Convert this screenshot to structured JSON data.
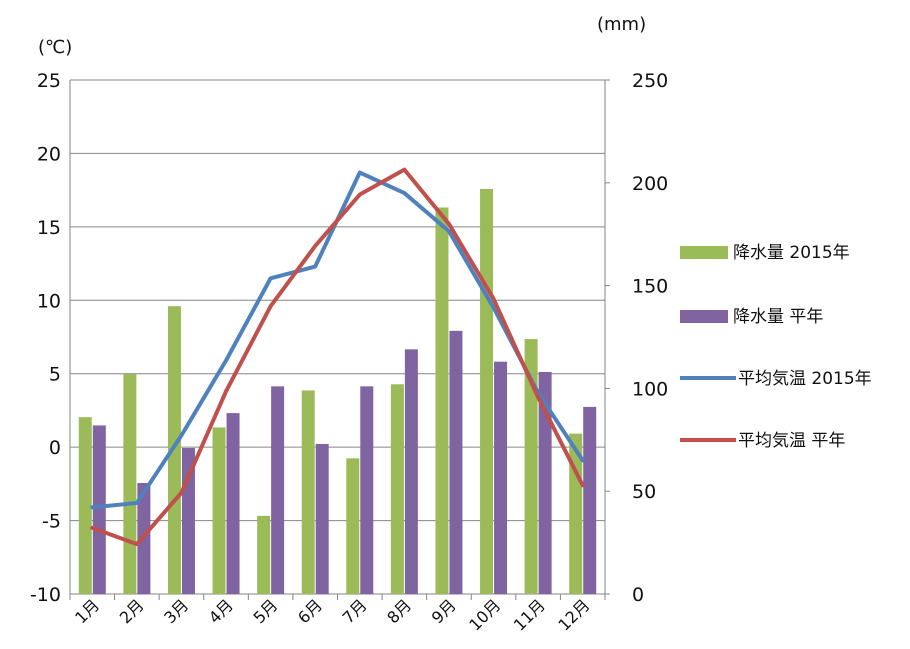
{
  "chart_data": {
    "type": "bar+line",
    "categories": [
      "1月",
      "2月",
      "3月",
      "4月",
      "5月",
      "6月",
      "7月",
      "8月",
      "9月",
      "10月",
      "11月",
      "12月"
    ],
    "left_axis": {
      "unit": "(℃)",
      "ylim": [
        -10,
        25
      ],
      "ticks": [
        -10,
        -5,
        0,
        5,
        10,
        15,
        20,
        25
      ]
    },
    "right_axis": {
      "unit": "(mm)",
      "ylim": [
        0,
        250
      ],
      "ticks": [
        0,
        50,
        100,
        150,
        200,
        250
      ]
    },
    "bar_series": [
      {
        "name": "降水量 2015年",
        "color": "#9BBB59",
        "axis": "right",
        "values": [
          86,
          107,
          140,
          81,
          38,
          99,
          66,
          102,
          188,
          197,
          124,
          78
        ]
      },
      {
        "name": "降水量 平年",
        "color": "#8064A2",
        "axis": "right",
        "values": [
          82,
          54,
          71,
          88,
          101,
          73,
          101,
          119,
          128,
          113,
          108,
          91
        ]
      }
    ],
    "line_series": [
      {
        "name": "平均気温 2015年",
        "color": "#4F81BD",
        "axis": "left",
        "values": [
          -4.1,
          -3.8,
          0.8,
          5.9,
          11.5,
          12.3,
          18.7,
          17.3,
          14.7,
          9.5,
          3.7,
          -0.9
        ]
      },
      {
        "name": "平均気温 平年",
        "color": "#C0504D",
        "axis": "left",
        "values": [
          -5.5,
          -6.6,
          -3.1,
          3.8,
          9.6,
          13.7,
          17.2,
          18.9,
          15.2,
          10.1,
          3.4,
          -2.6
        ]
      }
    ],
    "grid": {
      "horizontal": true,
      "vertical": false
    },
    "legend_position": "right",
    "legend_order": [
      "降水量 2015年",
      "降水量 平年",
      "平均気温 2015年",
      "平均気温 平年"
    ]
  }
}
